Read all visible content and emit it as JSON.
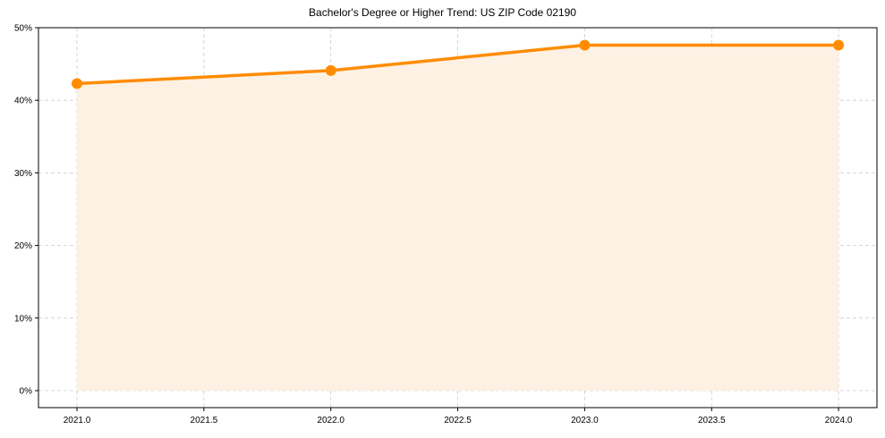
{
  "chart_data": {
    "type": "line",
    "title": "Bachelor's Degree or Higher Trend: US ZIP Code 02190",
    "xlabel": "",
    "ylabel": "",
    "x": [
      2021,
      2022,
      2023,
      2024
    ],
    "series": [
      {
        "name": "Bachelor's Degree or Higher",
        "values": [
          42.3,
          44.1,
          47.6,
          47.6
        ],
        "color": "#ff8c00",
        "fill": "#fdf1e4",
        "marker": "circle"
      }
    ],
    "xlim": [
      2020.85,
      2024.15
    ],
    "ylim": [
      -2.4,
      50
    ],
    "xticks": [
      "2021.0",
      "2021.5",
      "2022.0",
      "2022.5",
      "2023.0",
      "2023.5",
      "2024.0"
    ],
    "yticks": [
      "0%",
      "10%",
      "20%",
      "30%",
      "40%",
      "50%"
    ],
    "grid": true,
    "area_fill": true,
    "legend": null
  }
}
